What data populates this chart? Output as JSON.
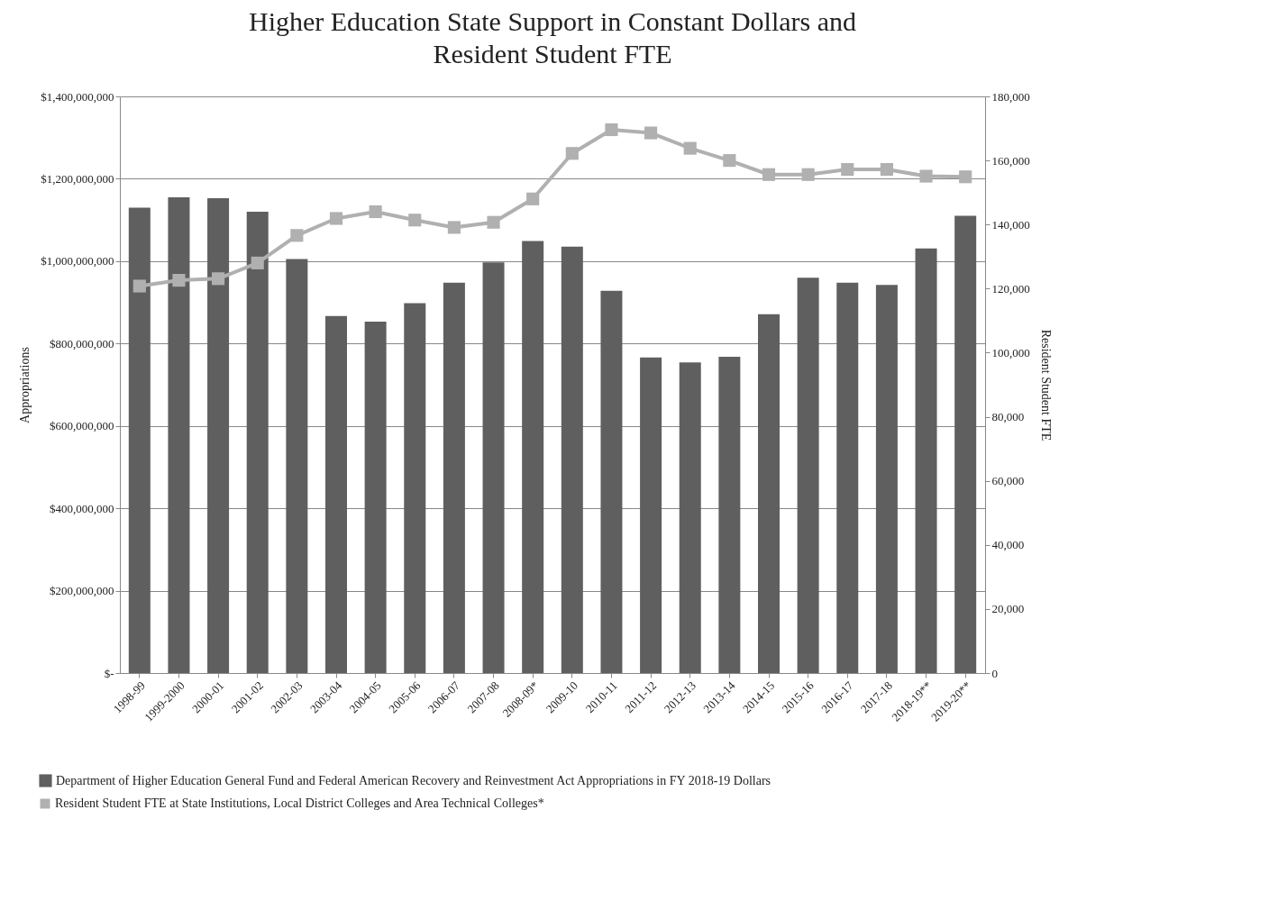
{
  "chart_data": {
    "type": "bar",
    "title": "Higher Education State Support in Constant Dollars and Resident Student FTE",
    "ylabel": "Appropriations",
    "y2label": "Resident Student FTE",
    "categories": [
      "1998-99",
      "1999-2000",
      "2000-01",
      "2001-02",
      "2002-03",
      "2003-04",
      "2004-05",
      "2005-06",
      "2006-07",
      "2007-08",
      "2008-09*",
      "2009-10",
      "2010-11",
      "2011-12",
      "2012-13",
      "2013-14",
      "2014-15",
      "2015-16",
      "2016-17",
      "2017-18",
      "2018-19**",
      "2019-20**"
    ],
    "series": [
      {
        "name": "Department of Higher Education General Fund and Federal American Recovery and Reinvestment Act Appropriations in FY 2018-19 Dollars",
        "color": "#5f5f5f",
        "values": [
          1130000000,
          1155000000,
          1153000000,
          1120000000,
          1005000000,
          867000000,
          853000000,
          898000000,
          948000000,
          997000000,
          1049000000,
          1035000000,
          928000000,
          766000000,
          754000000,
          768000000,
          871000000,
          960000000,
          948000000,
          942000000,
          1031000000,
          1110000000
        ]
      },
      {
        "name": "Resident Student FTE at State Institutions, Local District Colleges and Area Technical Colleges*",
        "type": "line",
        "axis": "y2",
        "color": "#b0b0b0",
        "marker": "square",
        "values": [
          120800,
          122600,
          123100,
          128000,
          136600,
          141900,
          144000,
          141400,
          139100,
          140700,
          148000,
          162200,
          169600,
          168600,
          163800,
          160000,
          155600,
          155600,
          157200,
          157200,
          155100,
          154900
        ]
      }
    ],
    "ylim": [
      0,
      1400000000
    ],
    "yticks": [
      {
        "value": 0,
        "label": "$-"
      },
      {
        "value": 200000000,
        "label": "$200,000,000"
      },
      {
        "value": 400000000,
        "label": "$400,000,000"
      },
      {
        "value": 600000000,
        "label": "$600,000,000"
      },
      {
        "value": 800000000,
        "label": "$800,000,000"
      },
      {
        "value": 1000000000,
        "label": "$1,000,000,000"
      },
      {
        "value": 1200000000,
        "label": "$1,200,000,000"
      },
      {
        "value": 1400000000,
        "label": "$1,400,000,000"
      }
    ],
    "y2lim": [
      0,
      180000
    ],
    "y2ticks": [
      0,
      {
        "value": 20000,
        "label": "20,000"
      },
      {
        "value": 40000,
        "label": "40,000"
      },
      {
        "value": 60000,
        "label": "60,000"
      },
      {
        "value": 80000,
        "label": "80,000"
      },
      {
        "value": 100000,
        "label": "100,000"
      },
      {
        "value": 120000,
        "label": "120,000"
      },
      {
        "value": 140000,
        "label": "140,000"
      },
      {
        "value": 160000,
        "label": "160,000"
      },
      {
        "value": 180000,
        "label": "180,000"
      }
    ],
    "grid": "y",
    "legend": "bottom"
  }
}
